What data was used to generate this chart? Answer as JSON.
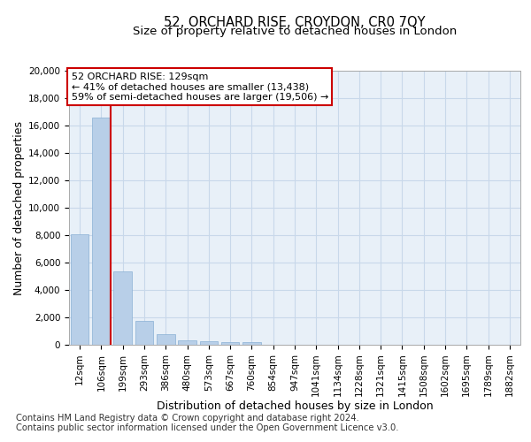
{
  "title": "52, ORCHARD RISE, CROYDON, CR0 7QY",
  "subtitle": "Size of property relative to detached houses in London",
  "xlabel": "Distribution of detached houses by size in London",
  "ylabel": "Number of detached properties",
  "categories": [
    "12sqm",
    "106sqm",
    "199sqm",
    "293sqm",
    "386sqm",
    "480sqm",
    "573sqm",
    "667sqm",
    "760sqm",
    "854sqm",
    "947sqm",
    "1041sqm",
    "1134sqm",
    "1228sqm",
    "1321sqm",
    "1415sqm",
    "1508sqm",
    "1602sqm",
    "1695sqm",
    "1789sqm",
    "1882sqm"
  ],
  "values": [
    8050,
    16600,
    5350,
    1750,
    780,
    340,
    265,
    225,
    210,
    0,
    0,
    0,
    0,
    0,
    0,
    0,
    0,
    0,
    0,
    0,
    0
  ],
  "bar_color": "#b8cfe8",
  "bar_edge_color": "#8ab0d4",
  "vline_x": 1.42,
  "vline_color": "#cc0000",
  "annotation_text": "52 ORCHARD RISE: 129sqm\n← 41% of detached houses are smaller (13,438)\n59% of semi-detached houses are larger (19,506) →",
  "annotation_box_color": "#cc0000",
  "ylim": [
    0,
    20000
  ],
  "yticks": [
    0,
    2000,
    4000,
    6000,
    8000,
    10000,
    12000,
    14000,
    16000,
    18000,
    20000
  ],
  "grid_color": "#c8d8ea",
  "bg_color": "#e8f0f8",
  "footer_line1": "Contains HM Land Registry data © Crown copyright and database right 2024.",
  "footer_line2": "Contains public sector information licensed under the Open Government Licence v3.0.",
  "title_fontsize": 10.5,
  "subtitle_fontsize": 9.5,
  "axis_label_fontsize": 9,
  "tick_fontsize": 7.5,
  "annotation_fontsize": 8,
  "footer_fontsize": 7.2
}
